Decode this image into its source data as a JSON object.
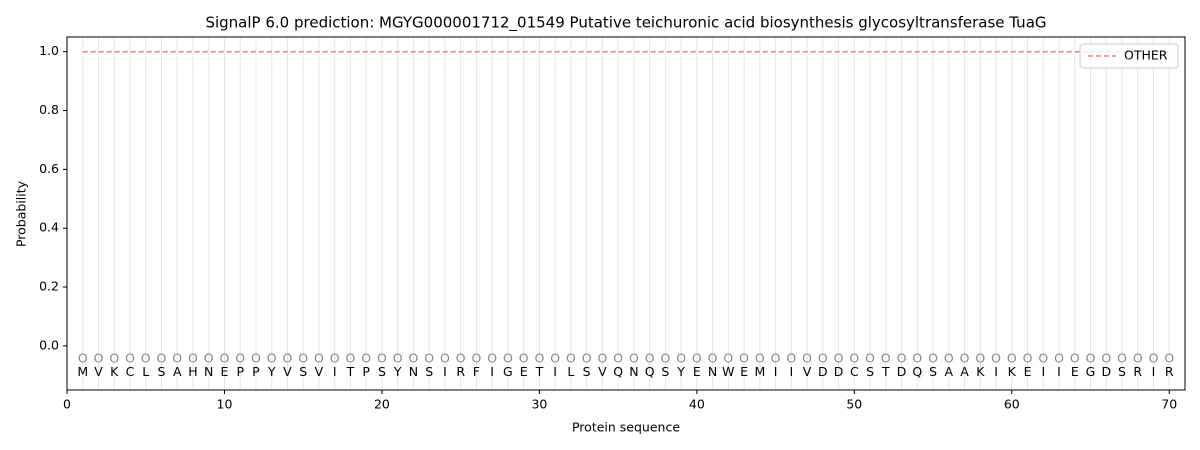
{
  "chart_data": {
    "type": "line",
    "title": "SignalP 6.0 prediction: MGYG000001712_01549 Putative teichuronic acid biosynthesis glycosyltransferase TuaG",
    "xlabel": "Protein sequence",
    "ylabel": "Probability",
    "x": [
      1,
      2,
      3,
      4,
      5,
      6,
      7,
      8,
      9,
      10,
      11,
      12,
      13,
      14,
      15,
      16,
      17,
      18,
      19,
      20,
      21,
      22,
      23,
      24,
      25,
      26,
      27,
      28,
      29,
      30,
      31,
      32,
      33,
      34,
      35,
      36,
      37,
      38,
      39,
      40,
      41,
      42,
      43,
      44,
      45,
      46,
      47,
      48,
      49,
      50,
      51,
      52,
      53,
      54,
      55,
      56,
      57,
      58,
      59,
      60,
      61,
      62,
      63,
      64,
      65,
      66,
      67,
      68,
      69,
      70
    ],
    "sequence": [
      "M",
      "V",
      "K",
      "C",
      "L",
      "S",
      "A",
      "H",
      "N",
      "E",
      "P",
      "P",
      "Y",
      "V",
      "S",
      "V",
      "I",
      "T",
      "P",
      "S",
      "Y",
      "N",
      "S",
      "I",
      "R",
      "F",
      "I",
      "G",
      "E",
      "T",
      "I",
      "L",
      "S",
      "V",
      "Q",
      "N",
      "Q",
      "S",
      "Y",
      "E",
      "N",
      "W",
      "E",
      "M",
      "I",
      "I",
      "V",
      "D",
      "D",
      "C",
      "S",
      "T",
      "D",
      "Q",
      "S",
      "A",
      "A",
      "K",
      "I",
      "K",
      "E",
      "I",
      "I",
      "E",
      "G",
      "D",
      "S",
      "R",
      "I",
      "R"
    ],
    "region_labels": [
      "O",
      "O",
      "O",
      "O",
      "O",
      "O",
      "O",
      "O",
      "O",
      "O",
      "O",
      "O",
      "O",
      "O",
      "O",
      "O",
      "O",
      "O",
      "O",
      "O",
      "O",
      "O",
      "O",
      "O",
      "O",
      "O",
      "O",
      "O",
      "O",
      "O",
      "O",
      "O",
      "O",
      "O",
      "O",
      "O",
      "O",
      "O",
      "O",
      "O",
      "O",
      "O",
      "O",
      "O",
      "O",
      "O",
      "O",
      "O",
      "O",
      "O",
      "O",
      "O",
      "O",
      "O",
      "O",
      "O",
      "O",
      "O",
      "O",
      "O",
      "O",
      "O",
      "O",
      "O",
      "O",
      "O",
      "O",
      "O",
      "O",
      "O"
    ],
    "series": [
      {
        "name": "OTHER",
        "color": "#f08080",
        "dashed": true,
        "values": [
          1,
          1,
          1,
          1,
          1,
          1,
          1,
          1,
          1,
          1,
          1,
          1,
          1,
          1,
          1,
          1,
          1,
          1,
          1,
          1,
          1,
          1,
          1,
          1,
          1,
          1,
          1,
          1,
          1,
          1,
          1,
          1,
          1,
          1,
          1,
          1,
          1,
          1,
          1,
          1,
          1,
          1,
          1,
          1,
          1,
          1,
          1,
          1,
          1,
          1,
          1,
          1,
          1,
          1,
          1,
          1,
          1,
          1,
          1,
          1,
          1,
          1,
          1,
          1,
          1,
          1,
          1,
          1,
          1,
          1
        ]
      }
    ],
    "xlim": [
      0,
      71
    ],
    "ylim": [
      -0.15,
      1.05
    ],
    "xticks": [
      0,
      10,
      20,
      30,
      40,
      50,
      60,
      70
    ],
    "yticks": [
      {
        "value": 0,
        "label": "0.0"
      },
      {
        "value": 0.2,
        "label": "0.2"
      },
      {
        "value": 0.4,
        "label": "0.4"
      },
      {
        "value": 0.6,
        "label": "0.6"
      },
      {
        "value": 0.8,
        "label": "0.8"
      },
      {
        "value": 1,
        "label": "1.0"
      }
    ],
    "legend": "upper right"
  }
}
